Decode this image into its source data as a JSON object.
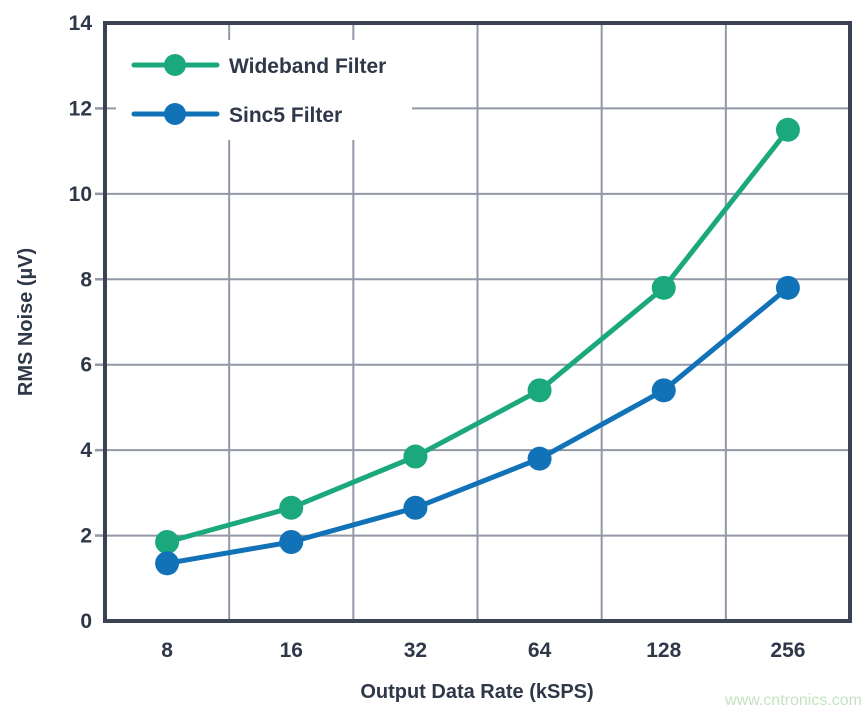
{
  "theme": {
    "background": "#ffffff",
    "axis_color": "#3a4254",
    "grid_color": "#9298a6",
    "text_color": "#2f3849"
  },
  "watermark": {
    "text": "www.cntronics.com",
    "color": "#c3e4c0"
  },
  "chart_data": {
    "type": "line",
    "title": "",
    "xlabel": "Output Data Rate (kSPS)",
    "ylabel": "RMS Noise (µV)",
    "categories": [
      "8",
      "16",
      "32",
      "64",
      "128",
      "256"
    ],
    "ylim": [
      0,
      14
    ],
    "yticks": [
      0,
      2,
      4,
      6,
      8,
      10,
      12,
      14
    ],
    "grid": true,
    "legend_position": "inside-top-left",
    "series": [
      {
        "name": "Wideband Filter",
        "color": "#1ba87c",
        "values": [
          1.85,
          2.65,
          3.85,
          5.4,
          7.8,
          11.5
        ]
      },
      {
        "name": "Sinc5 Filter",
        "color": "#1272b8",
        "values": [
          1.35,
          1.85,
          2.65,
          3.8,
          5.4,
          7.8
        ]
      }
    ]
  }
}
